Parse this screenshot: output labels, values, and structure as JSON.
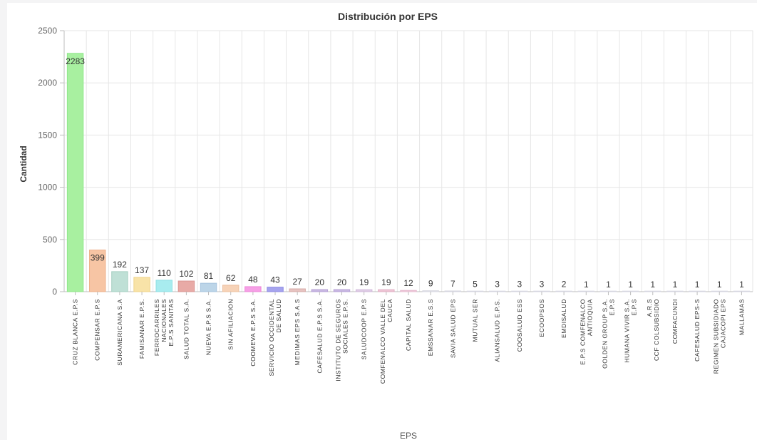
{
  "chart_data": {
    "type": "bar",
    "title": "Distribución por EPS",
    "xlabel": "EPS",
    "ylabel": "Cantidad",
    "ylim": [
      0,
      2500
    ],
    "yticks": [
      0,
      500,
      1000,
      1500,
      2000,
      2500
    ],
    "grid": true,
    "categories": [
      [
        "CRUZ BLANCA E.P.S"
      ],
      [
        "COMPENSAR E.P.S"
      ],
      [
        "SURAMERICANA S.A"
      ],
      [
        "FAMISANAR E.P.S."
      ],
      [
        "FERROCARRILES",
        "NACIONALES",
        "E.P.S SANITAS"
      ],
      [
        "SALUD TOTAL S.A."
      ],
      [
        "NUEVA E.P.S S.A."
      ],
      [
        "SIN AFILIACION"
      ],
      [
        "COOMEVA E.P.S S.A."
      ],
      [
        "SERVICIO OCCIDENTAL",
        "DE SALUD"
      ],
      [
        "MEDIMAS EPS S.A.S"
      ],
      [
        "CAFESALUD E.P.S S.A."
      ],
      [
        "INSTITUTO DE SEGUROS",
        "SOCIALES E.P.S."
      ],
      [
        "SALUDCOOP E.P.S"
      ],
      [
        "COMFENALCO VALLE DEL",
        "CAUCA"
      ],
      [
        "CAPITAL SALUD"
      ],
      [
        "EMSSANAR E.S.S"
      ],
      [
        "SAVIA SALUD EPS"
      ],
      [
        "MUTUAL SER"
      ],
      [
        "ALIANSALUD E.P.S."
      ],
      [
        "COOSALUD ESS"
      ],
      [
        "ECOOPSOS"
      ],
      [
        "EMDISALUD"
      ],
      [
        "E.P.S COMFENALCO",
        "ANTIOQUIA"
      ],
      [
        "GOLDEN GROUP S.A.",
        "E.P.S"
      ],
      [
        "HUMANA VIVIR S.A.",
        "E.P.S"
      ],
      [
        "A.R.S",
        "CCF COLSUBSIDIO"
      ],
      [
        "COMFACUNDI"
      ],
      [
        "CAFESALUD EPS-S"
      ],
      [
        "REGIMEN SUBSIDIADO",
        "CAJACOPI EPS"
      ],
      [
        "MALLAMAS"
      ]
    ],
    "values": [
      2283,
      399,
      192,
      137,
      110,
      102,
      81,
      62,
      48,
      43,
      27,
      20,
      20,
      19,
      19,
      12,
      9,
      7,
      5,
      3,
      3,
      3,
      2,
      1,
      1,
      1,
      1,
      1,
      1,
      1,
      1
    ],
    "fill_colors": [
      "#a8f0a0",
      "#f7c5a4",
      "#bfe0d6",
      "#f8e3a8",
      "#a8ecef",
      "#e8aaa6",
      "#bcd5e8",
      "#f7d3b8",
      "#f6a0e6",
      "#a6a4ee",
      "#e7c3c1",
      "#c9b8e2",
      "#c9b8e2",
      "#e0cde6",
      "#eec6d6",
      "#f2cfe0",
      "#e6e6ee",
      "#e6e6ee",
      "#e6e6ee",
      "#e6e6ee",
      "#e6e6ee",
      "#e6e6ee",
      "#e6e6ee",
      "#e6e6ee",
      "#e6e6ee",
      "#e6e6ee",
      "#e6e6ee",
      "#e6e6ee",
      "#e6e6ee",
      "#e6e6ee",
      "#e6e6ee"
    ],
    "stroke_colors": [
      "#8fe68a",
      "#eeb08a",
      "#a5cfc2",
      "#efd38a",
      "#8edfe3",
      "#d99592",
      "#a6c4de",
      "#edc09f",
      "#ec84d8",
      "#8c89e3",
      "#d6aaa7",
      "#b5a0d5",
      "#b5a0d5",
      "#d0b8da",
      "#e0adc2",
      "#e4b8cd",
      "#d6d6e0",
      "#d6d6e0",
      "#d6d6e0",
      "#d6d6e0",
      "#d6d6e0",
      "#d6d6e0",
      "#d6d6e0",
      "#d6d6e0",
      "#d6d6e0",
      "#d6d6e0",
      "#d6d6e0",
      "#d6d6e0",
      "#d6d6e0",
      "#d6d6e0",
      "#d6d6e0"
    ]
  }
}
